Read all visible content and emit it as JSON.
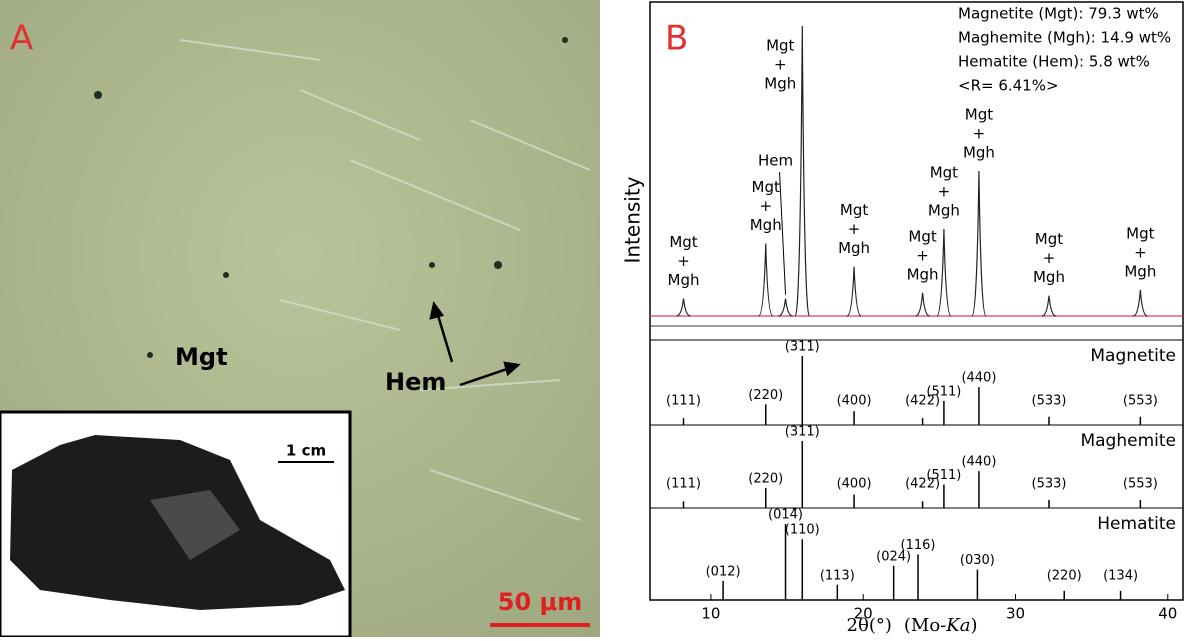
{
  "panel_a": {
    "label": "A",
    "mgt_label": "Mgt",
    "hem_label": "Hem",
    "inset_scale": "1 cm",
    "scale_bar": "50 μm"
  },
  "panel_b": {
    "label": "B",
    "legend": [
      "Magnetite (Mgt): 79.3 wt%",
      "Maghemite (Mgh): 14.9 wt%",
      "Hematite (Hem): 5.8 wt%",
      "<R= 6.41%>"
    ],
    "y_label": "Intensity",
    "x_label": [
      "2θ(°)",
      "(Mo-",
      "Ka",
      ")"
    ],
    "xlim": [
      6,
      41
    ],
    "xticks": [
      10,
      20,
      30,
      40
    ],
    "peaks": [
      {
        "x": 8.2,
        "intensity": 6,
        "label": [
          "Mgt",
          "+",
          "Mgh"
        ]
      },
      {
        "x": 13.6,
        "intensity": 25,
        "label": [
          "Mgt",
          "+",
          "Mgh"
        ]
      },
      {
        "x": 14.9,
        "intensity": 6,
        "label": [
          "Hem"
        ]
      },
      {
        "x": 16.0,
        "intensity": 100,
        "label": [
          "Mgt",
          "+",
          "Mgh"
        ]
      },
      {
        "x": 19.4,
        "intensity": 17,
        "label": [
          "Mgt",
          "+",
          "Mgh"
        ]
      },
      {
        "x": 23.9,
        "intensity": 8,
        "label": [
          "Mgt",
          "+",
          "Mgh"
        ]
      },
      {
        "x": 25.3,
        "intensity": 30,
        "label": [
          "Mgt",
          "+",
          "Mgh"
        ]
      },
      {
        "x": 27.6,
        "intensity": 50,
        "label": [
          "Mgt",
          "+",
          "Mgh"
        ]
      },
      {
        "x": 32.2,
        "intensity": 7,
        "label": [
          "Mgt",
          "+",
          "Mgh"
        ]
      },
      {
        "x": 38.2,
        "intensity": 9,
        "label": [
          "Mgt",
          "+",
          "Mgh"
        ]
      }
    ],
    "references": [
      {
        "name": "Magnetite",
        "lines": [
          {
            "x": 8.2,
            "intensity": 10,
            "hkl": "(111)"
          },
          {
            "x": 13.6,
            "intensity": 30,
            "hkl": "(220)"
          },
          {
            "x": 16.0,
            "intensity": 100,
            "hkl": "(311)"
          },
          {
            "x": 19.4,
            "intensity": 20,
            "hkl": "(400)"
          },
          {
            "x": 23.9,
            "intensity": 10,
            "hkl": "(422)"
          },
          {
            "x": 25.3,
            "intensity": 35,
            "hkl": "(511)"
          },
          {
            "x": 27.6,
            "intensity": 55,
            "hkl": "(440)"
          },
          {
            "x": 32.2,
            "intensity": 12,
            "hkl": "(533)"
          },
          {
            "x": 38.2,
            "intensity": 12,
            "hkl": "(553)"
          }
        ]
      },
      {
        "name": "Maghemite",
        "lines": [
          {
            "x": 8.2,
            "intensity": 10,
            "hkl": "(111)"
          },
          {
            "x": 13.6,
            "intensity": 30,
            "hkl": "(220)"
          },
          {
            "x": 16.0,
            "intensity": 100,
            "hkl": "(311)"
          },
          {
            "x": 19.4,
            "intensity": 20,
            "hkl": "(400)"
          },
          {
            "x": 23.9,
            "intensity": 10,
            "hkl": "(422)"
          },
          {
            "x": 25.3,
            "intensity": 35,
            "hkl": "(511)"
          },
          {
            "x": 27.6,
            "intensity": 55,
            "hkl": "(440)"
          },
          {
            "x": 32.2,
            "intensity": 12,
            "hkl": "(533)"
          },
          {
            "x": 38.2,
            "intensity": 12,
            "hkl": "(553)"
          }
        ]
      },
      {
        "name": "Hematite",
        "lines": [
          {
            "x": 10.8,
            "intensity": 25,
            "hkl": "(012)"
          },
          {
            "x": 14.9,
            "intensity": 100,
            "hkl": "(014̄)"
          },
          {
            "x": 16.0,
            "intensity": 80,
            "hkl": "(110)"
          },
          {
            "x": 18.3,
            "intensity": 20,
            "hkl": "(113)"
          },
          {
            "x": 22.0,
            "intensity": 45,
            "hkl": "(024)"
          },
          {
            "x": 23.6,
            "intensity": 60,
            "hkl": "(116)"
          },
          {
            "x": 27.5,
            "intensity": 40,
            "hkl": "(030)"
          },
          {
            "x": 33.2,
            "intensity": 12,
            "hkl": "(220)"
          },
          {
            "x": 36.9,
            "intensity": 12,
            "hkl": "(134)"
          }
        ]
      }
    ]
  }
}
